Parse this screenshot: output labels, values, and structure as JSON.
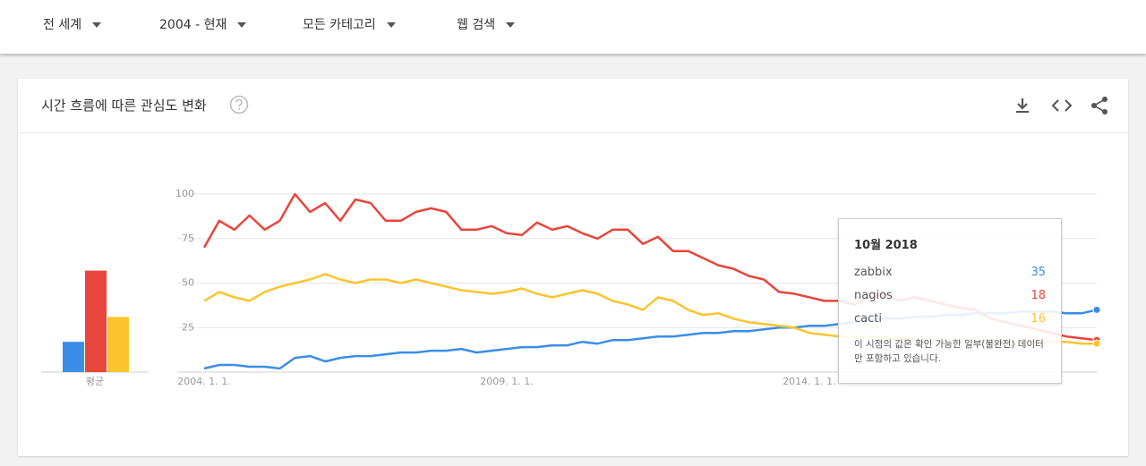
{
  "filters": [
    "전 세계",
    "2004 - 현재",
    "모든 카테고리",
    "웹 검색"
  ],
  "card_title": "시간 흐름에 따른 관심도 변화",
  "chart_data": {
    "type": "line",
    "x": [
      "2004-01",
      "2004-04",
      "2004-07",
      "2004-10",
      "2005-01",
      "2005-04",
      "2005-07",
      "2005-10",
      "2006-01",
      "2006-04",
      "2006-07",
      "2006-10",
      "2007-01",
      "2007-04",
      "2007-07",
      "2007-10",
      "2008-01",
      "2008-04",
      "2008-07",
      "2008-10",
      "2009-01",
      "2009-04",
      "2009-07",
      "2009-10",
      "2010-01",
      "2010-04",
      "2010-07",
      "2010-10",
      "2011-01",
      "2011-04",
      "2011-07",
      "2011-10",
      "2012-01",
      "2012-04",
      "2012-07",
      "2012-10",
      "2013-01",
      "2013-04",
      "2013-07",
      "2013-10",
      "2014-01",
      "2014-04",
      "2014-07",
      "2014-10",
      "2015-01",
      "2015-04",
      "2015-07",
      "2015-10",
      "2016-01",
      "2016-04",
      "2016-07",
      "2016-10",
      "2017-01",
      "2017-04",
      "2017-07",
      "2017-10",
      "2018-01",
      "2018-04",
      "2018-07",
      "2018-10"
    ],
    "xticks": [
      {
        "value": "2004-01",
        "label": "2004. 1. 1."
      },
      {
        "value": "2009-01",
        "label": "2009. 1. 1."
      },
      {
        "value": "2014-01",
        "label": "2014. 1. 1."
      }
    ],
    "ylim": [
      0,
      100
    ],
    "yticks": [
      25,
      50,
      75,
      100
    ],
    "grid": true,
    "average_label": "평균",
    "series": [
      {
        "name": "zabbix",
        "color": "#3b8de6",
        "average": 17,
        "values": [
          2,
          4,
          4,
          3,
          3,
          2,
          8,
          9,
          6,
          8,
          9,
          9,
          10,
          11,
          11,
          12,
          12,
          13,
          11,
          12,
          13,
          14,
          14,
          15,
          15,
          17,
          16,
          18,
          18,
          19,
          20,
          20,
          21,
          22,
          22,
          23,
          23,
          24,
          25,
          25,
          26,
          26,
          27,
          28,
          29,
          30,
          30,
          31,
          31,
          32,
          32,
          33,
          33,
          33,
          34,
          34,
          34,
          33,
          33,
          35
        ]
      },
      {
        "name": "nagios",
        "color": "#e8453c",
        "average": 57,
        "values": [
          70,
          85,
          80,
          88,
          80,
          85,
          100,
          90,
          95,
          85,
          97,
          95,
          85,
          85,
          90,
          92,
          90,
          80,
          80,
          82,
          78,
          77,
          84,
          80,
          82,
          78,
          75,
          80,
          80,
          72,
          76,
          68,
          68,
          64,
          60,
          58,
          54,
          52,
          45,
          44,
          42,
          40,
          40,
          38,
          42,
          44,
          40,
          42,
          40,
          38,
          36,
          35,
          30,
          28,
          26,
          24,
          22,
          20,
          19,
          18
        ]
      },
      {
        "name": "cacti",
        "color": "#fbc42f",
        "average": 31,
        "values": [
          40,
          45,
          42,
          40,
          45,
          48,
          50,
          52,
          55,
          52,
          50,
          52,
          52,
          50,
          52,
          50,
          48,
          46,
          45,
          44,
          45,
          47,
          44,
          42,
          44,
          46,
          44,
          40,
          38,
          35,
          42,
          40,
          35,
          32,
          33,
          30,
          28,
          27,
          26,
          25,
          22,
          21,
          20,
          20,
          20,
          19,
          19,
          18,
          18,
          18,
          18,
          17,
          18,
          17,
          17,
          17,
          17,
          17,
          16,
          16
        ]
      }
    ]
  },
  "tooltip": {
    "title": "10월 2018",
    "note": "이 시점의 값은 확인 가능한 일부(불완전) 데이터만 포함하고 있습니다."
  }
}
